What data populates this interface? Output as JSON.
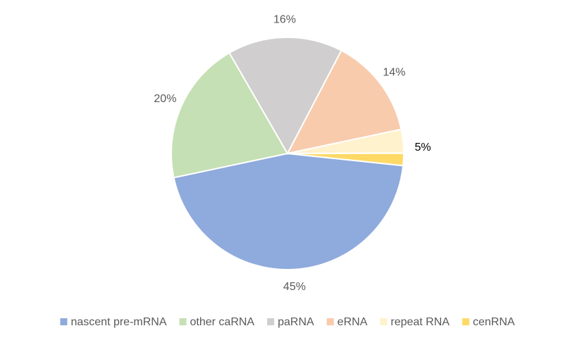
{
  "chart_data": {
    "type": "pie",
    "categories": [
      "nascent pre-mRNA",
      "other caRNA",
      "paRNA",
      "eRNA",
      "repeat RNA",
      "cenRNA"
    ],
    "values": [
      45,
      20,
      16,
      14,
      3.3,
      1.7
    ],
    "value_labels": [
      "45%",
      "20%",
      "16%",
      "14%",
      null,
      null
    ],
    "colors": [
      "#8faadc",
      "#c5e0b4",
      "#d0cece",
      "#f8cbad",
      "#fff2cc",
      "#ffd966"
    ],
    "start_angle": 96,
    "annotations": [
      "5%"
    ],
    "legend": "bottom"
  }
}
